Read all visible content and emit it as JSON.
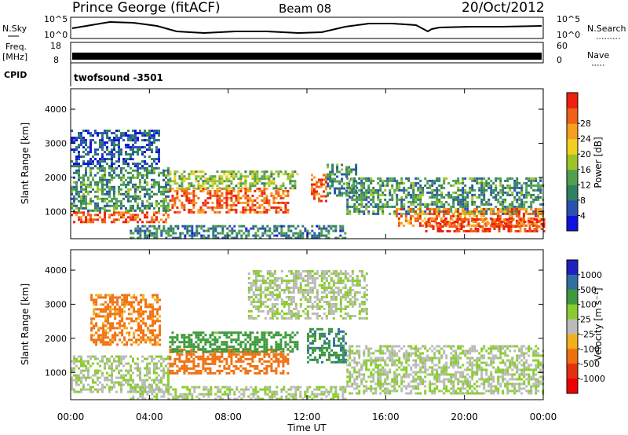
{
  "header": {
    "station": "Prince George (fitACF)",
    "beam": "Beam 08",
    "date": "20/Oct/2012"
  },
  "top_panels": {
    "nsky_label": "N.Sky",
    "nsky_ticks": [
      "10^5",
      "10^0"
    ],
    "nsearch_label": "N.Search",
    "freq_label_1": "Freq.",
    "freq_label_2": "[MHz]",
    "freq_ticks": [
      "18",
      "8"
    ],
    "nave_label": "Nave",
    "nave_ticks": [
      "60",
      "0"
    ],
    "cpid_label": "CPID",
    "cpid_value": "twofsound -3501"
  },
  "axes": {
    "ylabel": "Slant Range [km]",
    "yticks": [
      "1000",
      "2000",
      "3000",
      "4000"
    ],
    "xlabel": "Time UT",
    "xticks": [
      "00:00",
      "04:00",
      "08:00",
      "12:00",
      "16:00",
      "20:00",
      "00:00"
    ]
  },
  "colorbars": {
    "power": {
      "label": "Power [dB]",
      "ticks": [
        "4",
        "8",
        "12",
        "16",
        "20",
        "24",
        "28"
      ],
      "colors": [
        "#1010e0",
        "#2a50b0",
        "#2f8060",
        "#50a050",
        "#9cc42a",
        "#f2d020",
        "#f5a020",
        "#f06018",
        "#ee2010"
      ]
    },
    "velocity": {
      "label": "Velocity [m s⁻¹]",
      "ticks": [
        "1000",
        "500",
        "100",
        "25",
        "-25",
        "-100",
        "-500",
        "-1000"
      ],
      "colors": [
        "#2020c0",
        "#2f6fa0",
        "#3c9a3c",
        "#8acc30",
        "#bbbbbb",
        "#f2b020",
        "#f07010",
        "#e53010",
        "#ee0000"
      ]
    }
  },
  "chart_data": [
    {
      "type": "heatmap",
      "title": "Power",
      "xlabel": "Time UT",
      "ylabel": "Slant Range [km]",
      "xlim": [
        0,
        24
      ],
      "ylim": [
        200,
        4600
      ],
      "zlabel": "Power [dB]",
      "zlim": [
        0,
        30
      ],
      "regions": [
        {
          "t0": 0.0,
          "t1": 5.0,
          "r0": 700,
          "r1": 1000,
          "value": 26
        },
        {
          "t0": 0.0,
          "t1": 5.0,
          "r0": 1000,
          "r1": 2300,
          "value": 10
        },
        {
          "t0": 0.0,
          "t1": 4.5,
          "r0": 2300,
          "r1": 3400,
          "value": 5
        },
        {
          "t0": 5.0,
          "t1": 11.0,
          "r0": 1000,
          "r1": 1700,
          "value": 25
        },
        {
          "t0": 5.0,
          "t1": 11.5,
          "r0": 1700,
          "r1": 2200,
          "value": 14
        },
        {
          "t0": 3.0,
          "t1": 14.0,
          "r0": 250,
          "r1": 600,
          "value": 8
        },
        {
          "t0": 12.2,
          "t1": 13.0,
          "r0": 1300,
          "r1": 2100,
          "value": 26
        },
        {
          "t0": 13.0,
          "t1": 14.5,
          "r0": 1500,
          "r1": 2400,
          "value": 9
        },
        {
          "t0": 14.0,
          "t1": 24.0,
          "r0": 900,
          "r1": 2000,
          "value": 10
        },
        {
          "t0": 16.5,
          "t1": 24.0,
          "r0": 600,
          "r1": 1100,
          "value": 24
        },
        {
          "t0": 18.0,
          "t1": 24.0,
          "r0": 400,
          "r1": 800,
          "value": 27
        }
      ]
    },
    {
      "type": "heatmap",
      "title": "Velocity",
      "xlabel": "Time UT",
      "ylabel": "Slant Range [km]",
      "xlim": [
        0,
        24
      ],
      "ylim": [
        200,
        4600
      ],
      "zlabel": "Velocity [m s⁻¹]",
      "zlim": [
        -1000,
        1000
      ],
      "regions": [
        {
          "t0": 0.0,
          "t1": 5.0,
          "r0": 400,
          "r1": 1500,
          "value": 0
        },
        {
          "t0": 1.0,
          "t1": 4.5,
          "r0": 1800,
          "r1": 3300,
          "value": -150
        },
        {
          "t0": 5.0,
          "t1": 11.0,
          "r0": 1000,
          "r1": 1700,
          "value": -300
        },
        {
          "t0": 5.0,
          "t1": 11.5,
          "r0": 1600,
          "r1": 2200,
          "value": 60
        },
        {
          "t0": 3.0,
          "t1": 14.0,
          "r0": 250,
          "r1": 600,
          "value": 0
        },
        {
          "t0": 12.0,
          "t1": 14.0,
          "r0": 1300,
          "r1": 2300,
          "value": 80
        },
        {
          "t0": 14.0,
          "t1": 24.0,
          "r0": 400,
          "r1": 1800,
          "value": 0
        },
        {
          "t0": 9.0,
          "t1": 15.0,
          "r0": 2600,
          "r1": 4000,
          "value": 0
        }
      ]
    }
  ]
}
